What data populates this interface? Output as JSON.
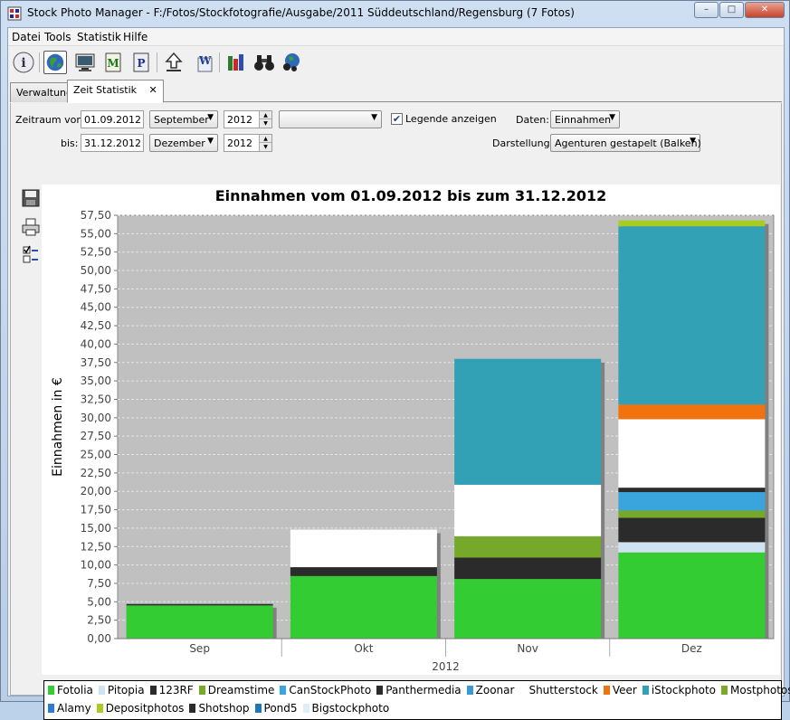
{
  "window": {
    "title": "Stock Photo Manager - F:/Fotos/Stockfotografie/Ausgabe/2011 Süddeutschland/Regensburg (7 Fotos)",
    "minimize": "–",
    "maximize": "□",
    "close": "✕"
  },
  "menu": [
    "Datei",
    "Tools",
    "Statistik",
    "Hilfe"
  ],
  "toolbar": {
    "buttons": [
      "info-icon",
      "globe-icon",
      "monitor-icon",
      "m-document-icon",
      "p-document-icon",
      "upload-icon",
      "word-export-icon",
      "bar-chart-icon",
      "binoculars-icon",
      "search-globe-icon"
    ]
  },
  "tabs": [
    {
      "label": "Verwaltung",
      "selected": false
    },
    {
      "label": "Zeit Statistik",
      "selected": true,
      "close": "✕"
    }
  ],
  "filters": {
    "from_label": "Zeitraum von:",
    "from_date": "01.09.2012",
    "from_month": "September",
    "from_year": "2012",
    "extra_combo": "",
    "to_label": "bis:",
    "to_date": "31.12.2012",
    "to_month": "Dezember",
    "to_year": "2012",
    "legend_label": "Legende anzeigen",
    "legend_checked": true,
    "data_label": "Daten:",
    "data_value": "Einnahmen",
    "display_label": "Darstellung:",
    "display_value": "Agenturen gestapelt (Balken)"
  },
  "side_tools": [
    "save-icon",
    "print-icon",
    "checklist-icon"
  ],
  "chart_data": {
    "type": "bar",
    "stacked": true,
    "title": "Einnahmen vom 01.09.2012 bis zum 31.12.2012",
    "ylabel": "Einnahmen in €",
    "xlabel": "2012",
    "categories": [
      "Sep",
      "Okt",
      "Nov",
      "Dez"
    ],
    "ylim": [
      0,
      57.5
    ],
    "yticks": [
      "0,00",
      "2,50",
      "5,00",
      "7,50",
      "10,00",
      "12,50",
      "15,00",
      "17,50",
      "20,00",
      "22,50",
      "25,00",
      "27,50",
      "30,00",
      "32,50",
      "35,00",
      "37,50",
      "40,00",
      "42,50",
      "45,00",
      "47,50",
      "50,00",
      "52,50",
      "55,00",
      "57,50"
    ],
    "grid": true,
    "legend_position": "bottom",
    "series": [
      {
        "name": "Fotolia",
        "color": "#33cc33",
        "values": [
          4.5,
          8.5,
          8.1,
          11.7
        ]
      },
      {
        "name": "Pitopia",
        "color": "#cfe3f2",
        "values": [
          0,
          0,
          0,
          1.4
        ]
      },
      {
        "name": "123RF",
        "color": "#2b2b2b",
        "values": [
          0.2,
          1.2,
          2.9,
          3.3
        ]
      },
      {
        "name": "Dreamstime",
        "color": "#76a82a",
        "values": [
          0,
          0,
          2.9,
          1.0
        ]
      },
      {
        "name": "CanStockPhoto",
        "color": "#3aa4dd",
        "values": [
          0,
          0,
          0,
          2.5
        ]
      },
      {
        "name": "Panthermedia",
        "color": "#2b2b2b",
        "values": [
          0,
          0,
          0,
          0.6
        ]
      },
      {
        "name": "Zoonar",
        "color": "#3a9ad0",
        "values": [
          0,
          0,
          0,
          0
        ]
      },
      {
        "name": "Shutterstock",
        "color": "#ffffff",
        "values": [
          0,
          5.1,
          7.0,
          9.3
        ]
      },
      {
        "name": "Veer",
        "color": "#f0730f",
        "values": [
          0,
          0,
          0,
          2.0
        ]
      },
      {
        "name": "iStockphoto",
        "color": "#33a1b5",
        "values": [
          0,
          0,
          17.1,
          24.2
        ]
      },
      {
        "name": "Mostphotos",
        "color": "#7ea82c",
        "values": [
          0,
          0,
          0,
          0
        ]
      },
      {
        "name": "Alamy",
        "color": "#2d7cd0",
        "values": [
          0,
          0,
          0,
          0
        ]
      },
      {
        "name": "Depositphotos",
        "color": "#a8cc22",
        "values": [
          0,
          0,
          0,
          0.8
        ]
      },
      {
        "name": "Shotshop",
        "color": "#2b2b2b",
        "values": [
          0,
          0,
          0,
          0
        ]
      },
      {
        "name": "Pond5",
        "color": "#1f78b4",
        "values": [
          0,
          0,
          0,
          0
        ]
      },
      {
        "name": "Bigstockphoto",
        "color": "#e0eef8",
        "values": [
          0,
          0,
          0,
          0
        ]
      }
    ]
  }
}
